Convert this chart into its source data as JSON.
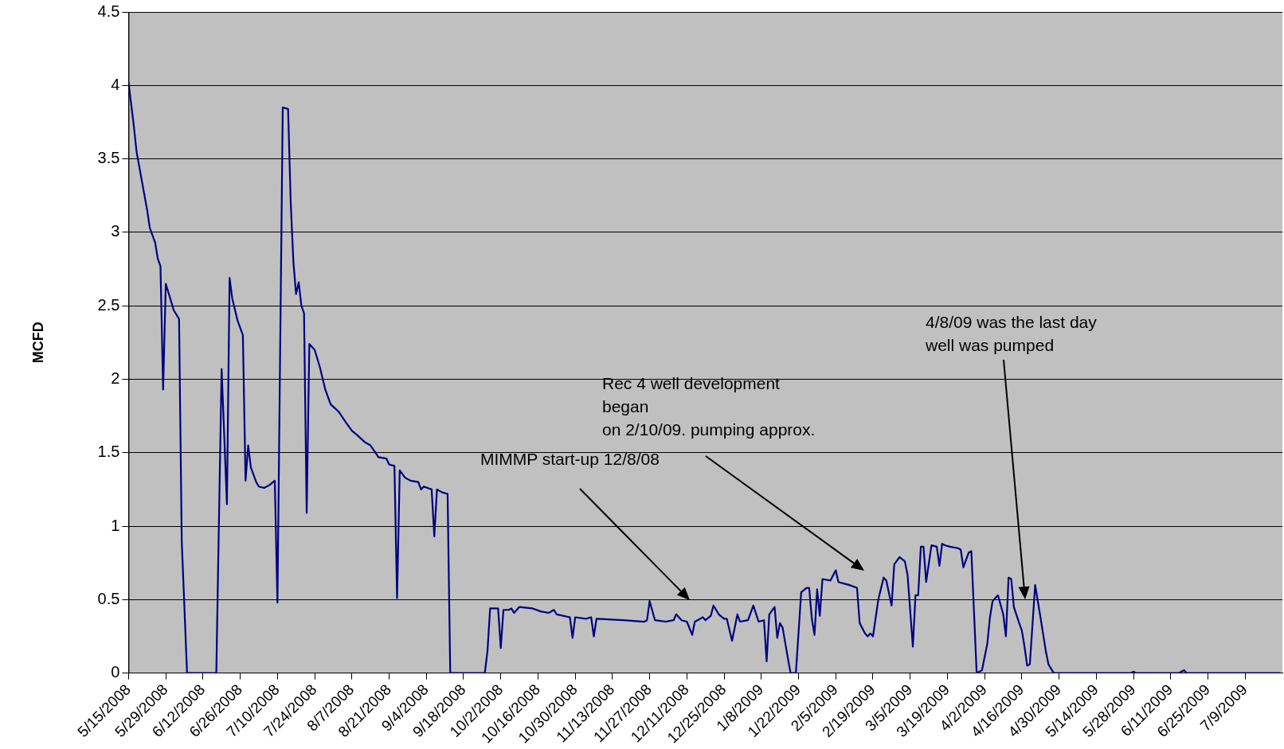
{
  "chart_data": {
    "type": "line",
    "ylabel": "MCFD",
    "legend": false,
    "grid": "y",
    "marker": "none",
    "line_style": "solid",
    "xlim": [
      "2008-05-15",
      "2009-07-23"
    ],
    "ylim": [
      0,
      4.5
    ],
    "yticks": [
      0,
      0.5,
      1,
      1.5,
      2,
      2.5,
      3,
      3.5,
      4,
      4.5
    ],
    "xticks": [
      {
        "value": "2008-05-15",
        "label": "5/15/2008"
      },
      {
        "value": "2008-05-29",
        "label": "5/29/2008"
      },
      {
        "value": "2008-06-12",
        "label": "6/12/2008"
      },
      {
        "value": "2008-06-26",
        "label": "6/26/2008"
      },
      {
        "value": "2008-07-10",
        "label": "7/10/2008"
      },
      {
        "value": "2008-07-24",
        "label": "7/24/2008"
      },
      {
        "value": "2008-08-07",
        "label": "8/7/2008"
      },
      {
        "value": "2008-08-21",
        "label": "8/21/2008"
      },
      {
        "value": "2008-09-04",
        "label": "9/4/2008"
      },
      {
        "value": "2008-09-18",
        "label": "9/18/2008"
      },
      {
        "value": "2008-10-02",
        "label": "10/2/2008"
      },
      {
        "value": "2008-10-16",
        "label": "10/16/2008"
      },
      {
        "value": "2008-10-30",
        "label": "10/30/2008"
      },
      {
        "value": "2008-11-13",
        "label": "11/13/2008"
      },
      {
        "value": "2008-11-27",
        "label": "11/27/2008"
      },
      {
        "value": "2008-12-11",
        "label": "12/11/2008"
      },
      {
        "value": "2008-12-25",
        "label": "12/25/2008"
      },
      {
        "value": "2009-01-08",
        "label": "1/8/2009"
      },
      {
        "value": "2009-01-22",
        "label": "1/22/2009"
      },
      {
        "value": "2009-02-05",
        "label": "2/5/2009"
      },
      {
        "value": "2009-02-19",
        "label": "2/19/2009"
      },
      {
        "value": "2009-03-05",
        "label": "3/5/2009"
      },
      {
        "value": "2009-03-19",
        "label": "3/19/2009"
      },
      {
        "value": "2009-04-02",
        "label": "4/2/2009"
      },
      {
        "value": "2009-04-16",
        "label": "4/16/2009"
      },
      {
        "value": "2009-04-30",
        "label": "4/30/2009"
      },
      {
        "value": "2009-05-14",
        "label": "5/14/2009"
      },
      {
        "value": "2009-05-28",
        "label": "5/28/2009"
      },
      {
        "value": "2009-06-11",
        "label": "6/11/2009"
      },
      {
        "value": "2009-06-25",
        "label": "6/25/2009"
      },
      {
        "value": "2009-07-09",
        "label": "7/9/2009"
      }
    ],
    "annotations": [
      "MIMMP start-up 12/8/08",
      "Rec 4 well development\nbegan\non 2/10/09. pumping approx.",
      "4/8/09 was the last day\nwell was pumped"
    ],
    "series": [
      {
        "color": "#000080",
        "x": [
          "2008-05-15",
          "2008-05-17",
          "2008-05-18",
          "2008-05-20",
          "2008-05-22",
          "2008-05-23",
          "2008-05-25",
          "2008-05-26",
          "2008-05-27",
          "2008-05-28",
          "2008-05-29",
          "2008-05-31",
          "2008-06-01",
          "2008-06-03",
          "2008-06-04",
          "2008-06-06",
          "2008-06-17",
          "2008-06-19",
          "2008-06-21",
          "2008-06-22",
          "2008-06-23",
          "2008-06-25",
          "2008-06-27",
          "2008-06-28",
          "2008-06-29",
          "2008-06-30",
          "2008-07-02",
          "2008-07-03",
          "2008-07-05",
          "2008-07-07",
          "2008-07-09",
          "2008-07-10",
          "2008-07-12",
          "2008-07-14",
          "2008-07-15",
          "2008-07-16",
          "2008-07-17",
          "2008-07-18",
          "2008-07-19",
          "2008-07-20",
          "2008-07-21",
          "2008-07-22",
          "2008-07-24",
          "2008-07-26",
          "2008-07-28",
          "2008-07-30",
          "2008-08-02",
          "2008-08-05",
          "2008-08-07",
          "2008-08-09",
          "2008-08-12",
          "2008-08-14",
          "2008-08-17",
          "2008-08-20",
          "2008-08-21",
          "2008-08-23",
          "2008-08-24",
          "2008-08-25",
          "2008-08-27",
          "2008-08-29",
          "2008-09-01",
          "2008-09-02",
          "2008-09-03",
          "2008-09-06",
          "2008-09-07",
          "2008-09-08",
          "2008-09-10",
          "2008-09-12",
          "2008-09-13",
          "2008-09-26",
          "2008-09-27",
          "2008-09-28",
          "2008-10-01",
          "2008-10-02",
          "2008-10-03",
          "2008-10-05",
          "2008-10-06",
          "2008-10-07",
          "2008-10-09",
          "2008-10-14",
          "2008-10-17",
          "2008-10-20",
          "2008-10-22",
          "2008-10-23",
          "2008-10-28",
          "2008-10-29",
          "2008-10-30",
          "2008-11-03",
          "2008-11-05",
          "2008-11-06",
          "2008-11-07",
          "2008-11-17",
          "2008-11-25",
          "2008-11-26",
          "2008-11-27",
          "2008-11-29",
          "2008-12-03",
          "2008-12-06",
          "2008-12-07",
          "2008-12-09",
          "2008-12-11",
          "2008-12-13",
          "2008-12-14",
          "2008-12-15",
          "2008-12-17",
          "2008-12-18",
          "2008-12-20",
          "2008-12-21",
          "2008-12-23",
          "2008-12-25",
          "2008-12-26",
          "2008-12-28",
          "2008-12-29",
          "2008-12-30",
          "2008-12-31",
          "2009-01-03",
          "2009-01-05",
          "2009-01-07",
          "2009-01-09",
          "2009-01-10",
          "2009-01-11",
          "2009-01-13",
          "2009-01-14",
          "2009-01-15",
          "2009-01-16",
          "2009-01-18",
          "2009-01-19",
          "2009-01-21",
          "2009-01-23",
          "2009-01-25",
          "2009-01-26",
          "2009-01-27",
          "2009-01-28",
          "2009-01-29",
          "2009-01-30",
          "2009-01-31",
          "2009-02-03",
          "2009-02-05",
          "2009-02-06",
          "2009-02-10",
          "2009-02-13",
          "2009-02-14",
          "2009-02-16",
          "2009-02-17",
          "2009-02-18",
          "2009-02-19",
          "2009-02-21",
          "2009-02-23",
          "2009-02-24",
          "2009-02-26",
          "2009-02-27",
          "2009-03-01",
          "2009-03-03",
          "2009-03-04",
          "2009-03-06",
          "2009-03-07",
          "2009-03-08",
          "2009-03-09",
          "2009-03-10",
          "2009-03-11",
          "2009-03-13",
          "2009-03-15",
          "2009-03-16",
          "2009-03-17",
          "2009-03-18",
          "2009-03-20",
          "2009-03-23",
          "2009-03-24",
          "2009-03-25",
          "2009-03-27",
          "2009-03-28",
          "2009-03-30",
          "2009-04-01",
          "2009-04-03",
          "2009-04-04",
          "2009-04-05",
          "2009-04-07",
          "2009-04-09",
          "2009-04-10",
          "2009-04-11",
          "2009-04-12",
          "2009-04-13",
          "2009-04-15",
          "2009-04-16",
          "2009-04-17",
          "2009-04-18",
          "2009-04-19",
          "2009-04-21",
          "2009-04-23",
          "2009-04-25",
          "2009-04-26",
          "2009-04-28",
          "2009-05-27",
          "2009-05-28",
          "2009-05-29",
          "2009-06-14",
          "2009-06-16",
          "2009-06-17",
          "2009-07-22"
        ],
        "values": [
          4.02,
          3.72,
          3.55,
          3.35,
          3.15,
          3.03,
          2.93,
          2.82,
          2.77,
          1.93,
          2.65,
          2.53,
          2.47,
          2.41,
          0.9,
          0,
          0,
          2.07,
          1.15,
          2.69,
          2.55,
          2.4,
          2.3,
          1.31,
          1.55,
          1.4,
          1.3,
          1.27,
          1.26,
          1.28,
          1.31,
          0.48,
          3.85,
          3.84,
          3.2,
          2.8,
          2.58,
          2.66,
          2.5,
          2.45,
          1.09,
          2.24,
          2.2,
          2.08,
          1.93,
          1.83,
          1.78,
          1.7,
          1.65,
          1.62,
          1.57,
          1.55,
          1.47,
          1.46,
          1.42,
          1.41,
          0.51,
          1.38,
          1.33,
          1.31,
          1.3,
          1.25,
          1.27,
          1.25,
          0.93,
          1.25,
          1.23,
          1.22,
          0,
          0,
          0.15,
          0.44,
          0.44,
          0.17,
          0.43,
          0.43,
          0.44,
          0.41,
          0.45,
          0.44,
          0.42,
          0.41,
          0.43,
          0.4,
          0.38,
          0.24,
          0.38,
          0.37,
          0.38,
          0.25,
          0.37,
          0.36,
          0.35,
          0.36,
          0.49,
          0.36,
          0.35,
          0.36,
          0.4,
          0.36,
          0.35,
          0.26,
          0.35,
          0.36,
          0.38,
          0.36,
          0.39,
          0.46,
          0.4,
          0.37,
          0.37,
          0.22,
          0.31,
          0.4,
          0.35,
          0.36,
          0.46,
          0.35,
          0.36,
          0.08,
          0.4,
          0.45,
          0.24,
          0.34,
          0.31,
          0.1,
          0,
          0,
          0.55,
          0.58,
          0.58,
          0.37,
          0.26,
          0.57,
          0.39,
          0.64,
          0.63,
          0.7,
          0.62,
          0.6,
          0.58,
          0.34,
          0.27,
          0.25,
          0.27,
          0.25,
          0.5,
          0.65,
          0.63,
          0.46,
          0.74,
          0.79,
          0.76,
          0.67,
          0.18,
          0.53,
          0.53,
          0.86,
          0.86,
          0.62,
          0.87,
          0.86,
          0.73,
          0.88,
          0.87,
          0.86,
          0.85,
          0.84,
          0.72,
          0.82,
          0.83,
          0,
          0.02,
          0.2,
          0.38,
          0.49,
          0.53,
          0.4,
          0.25,
          0.65,
          0.64,
          0.45,
          0.34,
          0.29,
          0.18,
          0.05,
          0.06,
          0.6,
          0.38,
          0.15,
          0.06,
          0,
          0,
          0.01,
          0,
          0,
          0.02,
          0,
          0
        ]
      }
    ]
  }
}
